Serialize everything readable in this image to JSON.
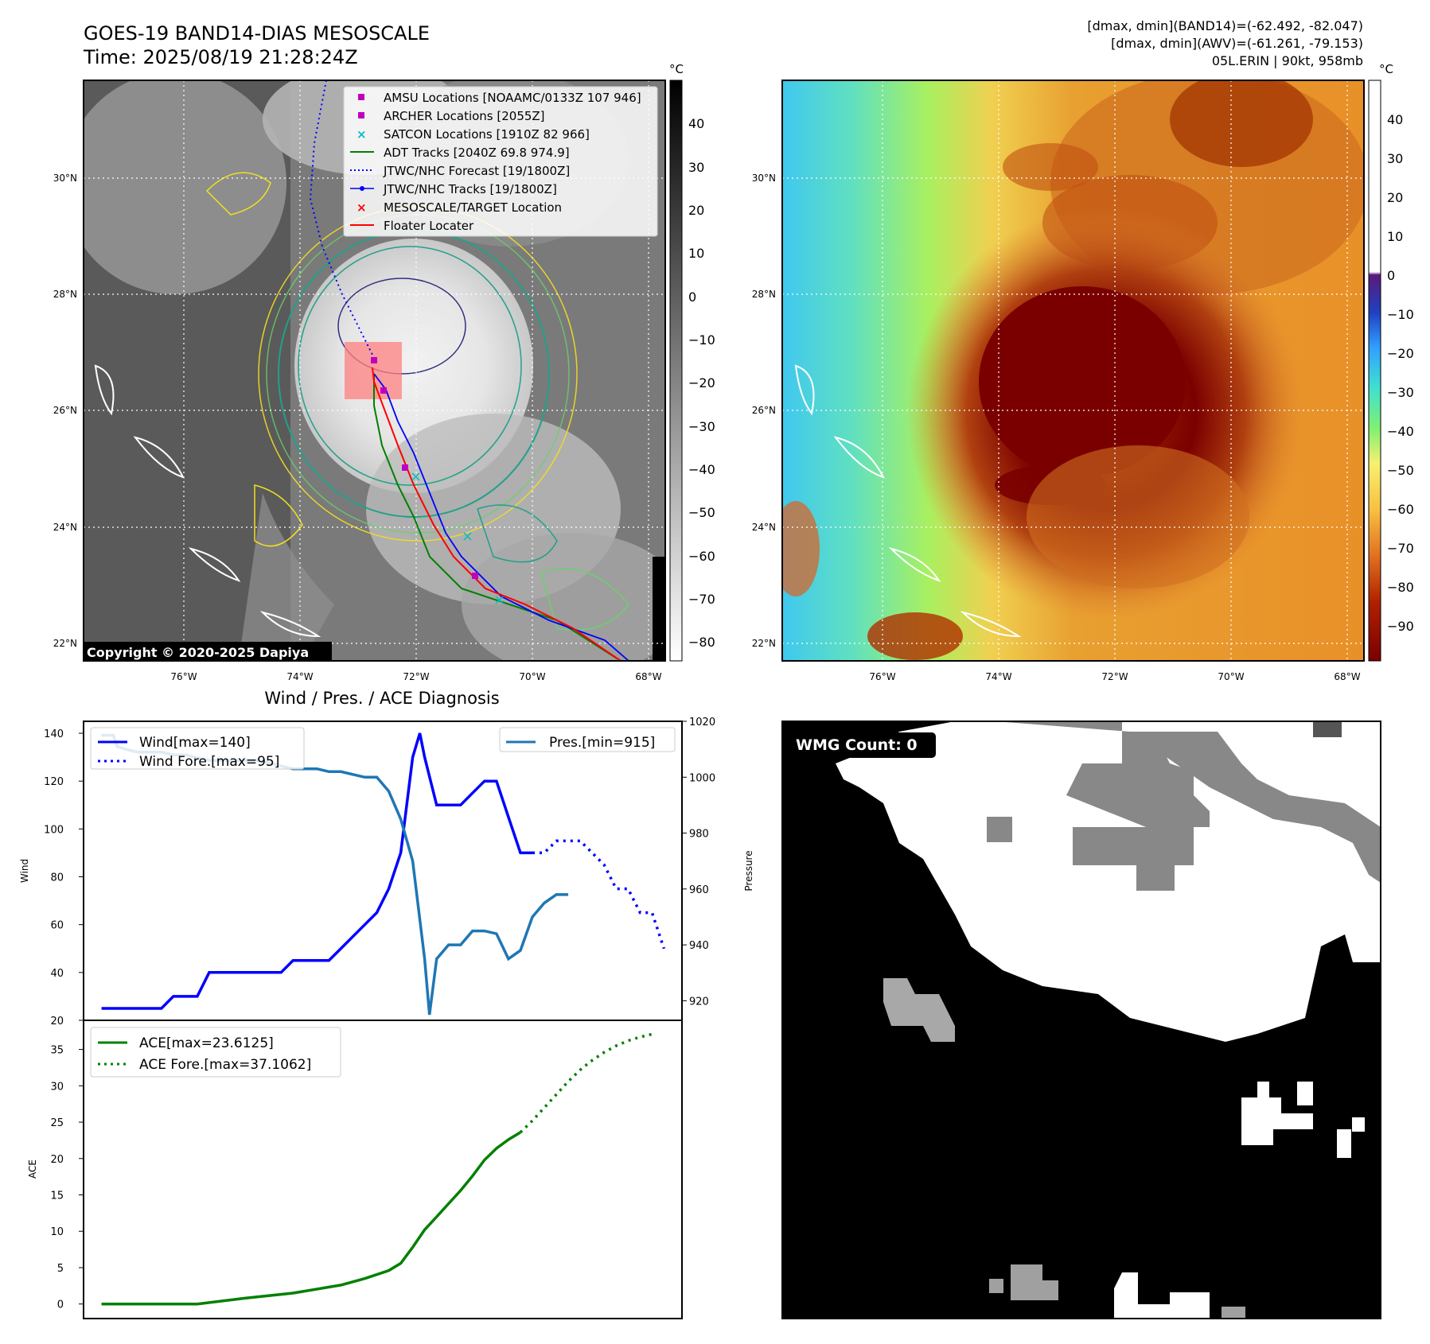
{
  "header": {
    "title": "GOES-19 BAND14-DIAS MESOSCALE",
    "time": "Time: 2025/08/19 21:28:24Z",
    "info_line1": "[dmax, dmin](BAND14)=(-62.492, -82.047)",
    "info_line2": "[dmax, dmin](AWV)=(-61.261, -79.153)",
    "info_line3": "05L.ERIN | 90kt, 958mb"
  },
  "map_axes": {
    "lat_labels": [
      "30°N",
      "28°N",
      "26°N",
      "24°N",
      "22°N"
    ],
    "lon_labels": [
      "76°W",
      "74°W",
      "72°W",
      "70°W",
      "68°W"
    ]
  },
  "colorbar_left": {
    "unit": "°C",
    "ticks": [
      "40",
      "30",
      "20",
      "10",
      "0",
      "−10",
      "−20",
      "−30",
      "−40",
      "−50",
      "−60",
      "−70",
      "−80"
    ]
  },
  "colorbar_right": {
    "unit": "°C",
    "ticks": [
      "40",
      "30",
      "20",
      "10",
      "0",
      "−10",
      "−20",
      "−30",
      "−40",
      "−50",
      "−60",
      "−70",
      "−80",
      "−90"
    ]
  },
  "legend": {
    "items": [
      {
        "label": "AMSU Locations [NOAAMC/0133Z 107 946]",
        "color": "#c000c0",
        "marker": "square"
      },
      {
        "label": "ARCHER Locations [2055Z]",
        "color": "#c000c0",
        "marker": "square"
      },
      {
        "label": "SATCON Locations [1910Z 82 966]",
        "color": "#00c0c0",
        "marker": "x"
      },
      {
        "label": "ADT Tracks [2040Z 69.8 974.9]",
        "color": "#008000",
        "marker": "line"
      },
      {
        "label": "JTWC/NHC Forecast [19/1800Z]",
        "color": "#0000ff",
        "marker": "dotted"
      },
      {
        "label": "JTWC/NHC Tracks [19/1800Z]",
        "color": "#0000ff",
        "marker": "dotline"
      },
      {
        "label": "MESOSCALE/TARGET Location",
        "color": "#ff0000",
        "marker": "x"
      },
      {
        "label": "Floater Locater",
        "color": "#ff0000",
        "marker": "line"
      }
    ]
  },
  "copyright": "Copyright © 2020-2025 Dapiya",
  "wmg": {
    "label": "WMG Count: 0"
  },
  "colors": {
    "jtwc": "#0000ff",
    "floater": "#ff0000",
    "adt": "#008000",
    "amsu": "#c000c0",
    "satcon": "#00c0c0",
    "pressure": "#1f77b4",
    "ace": "#008000"
  },
  "chart_data": [
    {
      "type": "line",
      "title": "Wind / Pres. / ACE Diagnosis",
      "ylabel": "Wind",
      "y2label": "Pressure",
      "ylim": [
        20,
        145
      ],
      "y2lim": [
        913,
        1020
      ],
      "yticks": [
        "140",
        "120",
        "100",
        "80",
        "60",
        "40",
        "20"
      ],
      "y2ticks": [
        "1020",
        "1000",
        "980",
        "960",
        "940",
        "920"
      ],
      "legend_left": [
        "Wind[max=140]",
        "Wind Fore.[max=95]"
      ],
      "legend_right": [
        "Pres.[min=915]"
      ],
      "series": [
        {
          "name": "Wind[max=140]",
          "style": "solid",
          "color": "#0000ff",
          "values": [
            [
              0,
              25
            ],
            [
              1,
              25
            ],
            [
              2,
              25
            ],
            [
              3,
              25
            ],
            [
              4,
              25
            ],
            [
              5,
              25
            ],
            [
              6,
              30
            ],
            [
              7,
              30
            ],
            [
              8,
              30
            ],
            [
              9,
              40
            ],
            [
              10,
              40
            ],
            [
              11,
              40
            ],
            [
              12,
              40
            ],
            [
              13,
              40
            ],
            [
              14,
              40
            ],
            [
              15,
              40
            ],
            [
              16,
              45
            ],
            [
              17,
              45
            ],
            [
              18,
              45
            ],
            [
              19,
              45
            ],
            [
              20,
              50
            ],
            [
              21,
              55
            ],
            [
              22,
              60
            ],
            [
              23,
              65
            ],
            [
              24,
              75
            ],
            [
              25,
              90
            ],
            [
              26,
              130
            ],
            [
              26.6,
              140
            ],
            [
              27,
              130
            ],
            [
              28,
              110
            ],
            [
              29,
              110
            ],
            [
              30,
              110
            ],
            [
              31,
              115
            ],
            [
              32,
              120
            ],
            [
              33,
              120
            ],
            [
              34,
              105
            ],
            [
              35,
              90
            ],
            [
              36,
              90
            ]
          ]
        },
        {
          "name": "Wind Fore.[max=95]",
          "style": "dotted",
          "color": "#0000ff",
          "values": [
            [
              36,
              90
            ],
            [
              37,
              90
            ],
            [
              38,
              95
            ],
            [
              39,
              95
            ],
            [
              40,
              95
            ],
            [
              41,
              90
            ],
            [
              42,
              85
            ],
            [
              43,
              75
            ],
            [
              44,
              75
            ],
            [
              45,
              65
            ],
            [
              46,
              65
            ],
            [
              47,
              50
            ]
          ]
        },
        {
          "name": "Pres.[min=915]",
          "style": "solid",
          "color": "#1f77b4",
          "axis": "right",
          "values": [
            [
              0,
              1015
            ],
            [
              1,
              1015
            ],
            [
              1.3,
              1011
            ],
            [
              2,
              1010
            ],
            [
              3,
              1009
            ],
            [
              4,
              1009
            ],
            [
              5,
              1009
            ],
            [
              6,
              1008
            ],
            [
              7,
              1008
            ],
            [
              8,
              1007
            ],
            [
              9,
              1006
            ],
            [
              10,
              1006
            ],
            [
              11,
              1006
            ],
            [
              12,
              1006
            ],
            [
              13,
              1006
            ],
            [
              14,
              1005
            ],
            [
              15,
              1004
            ],
            [
              16,
              1003
            ],
            [
              17,
              1003
            ],
            [
              18,
              1003
            ],
            [
              19,
              1002
            ],
            [
              20,
              1002
            ],
            [
              21,
              1001
            ],
            [
              22,
              1000
            ],
            [
              23,
              1000
            ],
            [
              24,
              995
            ],
            [
              25,
              985
            ],
            [
              26,
              970
            ],
            [
              27,
              935
            ],
            [
              27.4,
              915
            ],
            [
              28,
              935
            ],
            [
              29,
              940
            ],
            [
              30,
              940
            ],
            [
              31,
              945
            ],
            [
              32,
              945
            ],
            [
              33,
              944
            ],
            [
              34,
              935
            ],
            [
              35,
              938
            ],
            [
              36,
              950
            ],
            [
              37,
              955
            ],
            [
              38,
              958
            ],
            [
              39,
              958
            ]
          ]
        }
      ]
    },
    {
      "type": "line",
      "ylabel": "ACE",
      "ylim": [
        -2,
        39
      ],
      "yticks": [
        "35",
        "30",
        "25",
        "20",
        "15",
        "10",
        "5",
        "0"
      ],
      "legend": [
        "ACE[max=23.6125]",
        "ACE Fore.[max=37.1062]"
      ],
      "series": [
        {
          "name": "ACE[max=23.6125]",
          "style": "solid",
          "color": "#008000",
          "values": [
            [
              0,
              0
            ],
            [
              8,
              0
            ],
            [
              12,
              0.8
            ],
            [
              16,
              1.5
            ],
            [
              20,
              2.6
            ],
            [
              22,
              3.5
            ],
            [
              24,
              4.6
            ],
            [
              25,
              5.6
            ],
            [
              26,
              7.8
            ],
            [
              27,
              10.2
            ],
            [
              28,
              12
            ],
            [
              29,
              13.8
            ],
            [
              30,
              15.6
            ],
            [
              31,
              17.6
            ],
            [
              32,
              19.8
            ],
            [
              33,
              21.4
            ],
            [
              34,
              22.6
            ],
            [
              35,
              23.6
            ]
          ]
        },
        {
          "name": "ACE Fore.[max=37.1062]",
          "style": "dotted",
          "color": "#008000",
          "values": [
            [
              35,
              23.6
            ],
            [
              36,
              25.2
            ],
            [
              37,
              27
            ],
            [
              38,
              28.8
            ],
            [
              39,
              30.6
            ],
            [
              40,
              32.2
            ],
            [
              41,
              33.5
            ],
            [
              42,
              34.6
            ],
            [
              43,
              35.5
            ],
            [
              44,
              36.2
            ],
            [
              45,
              36.7
            ],
            [
              46,
              37.1
            ]
          ]
        }
      ]
    }
  ]
}
